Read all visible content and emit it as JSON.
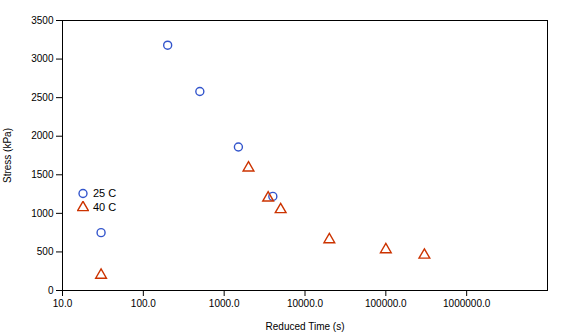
{
  "chart_data": {
    "type": "scatter",
    "xlabel": "Reduced Time (s)",
    "ylabel": "Stress (kPa)",
    "log": "x",
    "grid": false,
    "legend": "lower left",
    "xlim": [
      10,
      10000000
    ],
    "xticks": [
      {
        "value": 10,
        "label": "10.0"
      },
      {
        "value": 100,
        "label": "100.0"
      },
      {
        "value": 1000,
        "label": "1000.0"
      },
      {
        "value": 10000,
        "label": "10000.0"
      },
      {
        "value": 100000,
        "label": "100000.0"
      },
      {
        "value": 1000000,
        "label": "1000000.0"
      }
    ],
    "ylim": [
      0,
      3500
    ],
    "yticks": [
      0,
      500,
      1000,
      1500,
      2000,
      2500,
      3000,
      3500
    ],
    "series": [
      {
        "name": "25 C",
        "color": "#3355cc",
        "marker": "circle",
        "x": [
          30,
          200,
          500,
          1500,
          4000
        ],
        "values": [
          750,
          3180,
          2580,
          1860,
          1220
        ]
      },
      {
        "name": "40 C",
        "color": "#cc3300",
        "marker": "triangle",
        "x": [
          30,
          2000,
          3500,
          5000,
          20000,
          100000,
          300000
        ],
        "values": [
          200,
          1590,
          1200,
          1050,
          660,
          530,
          460
        ]
      }
    ]
  }
}
